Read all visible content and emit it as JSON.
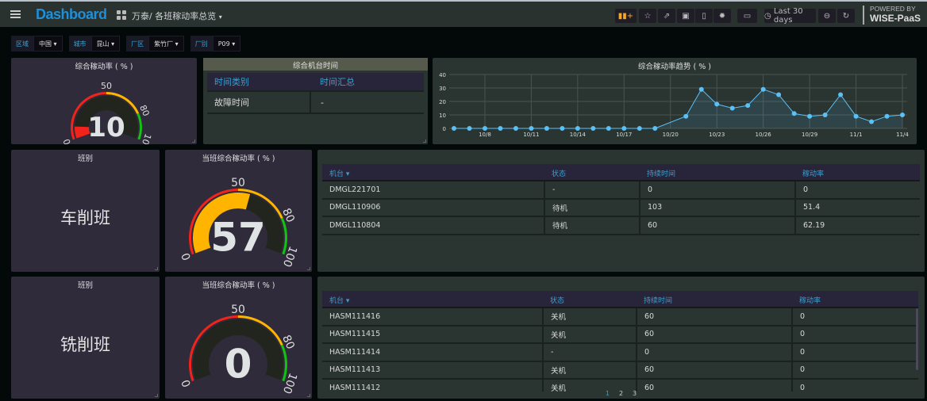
{
  "header": {
    "brand": "Dashboard",
    "breadcrumb": "万泰/ 各班稼动率总览",
    "time_range": "Last 30 days",
    "powered_by": "POWERED BY",
    "platform": "WISE-PaaS",
    "toolbar_icons": [
      "add-panel-icon",
      "star-icon",
      "share-icon",
      "save-icon",
      "mobile-icon",
      "gear-icon",
      "monitor-icon",
      "clock-icon",
      "zoom-out-icon",
      "refresh-icon"
    ]
  },
  "filters": [
    {
      "label": "区域",
      "value": "中国"
    },
    {
      "label": "城市",
      "value": "昆山"
    },
    {
      "label": "厂区",
      "value": "紫竹厂"
    },
    {
      "label": "厂别",
      "value": "P09"
    }
  ],
  "overall_gauge": {
    "title": "综合稼动率 ( % )",
    "value": 10,
    "min": 0,
    "max": 100,
    "thresholds": [
      50,
      80
    ],
    "colors": [
      "#f2231b",
      "#ffb400",
      "#12c312"
    ]
  },
  "machine_time": {
    "title": "综合机台时间",
    "headers": [
      "时间类别",
      "时间汇总"
    ],
    "rows": [
      [
        "故障时间",
        "-"
      ]
    ]
  },
  "trend": {
    "title": "综合稼动率趋势 ( % )"
  },
  "shifts": [
    {
      "label_title": "班别",
      "name": "车削班",
      "gauge_title": "当班综合稼动率 ( % )",
      "value": 57,
      "table": {
        "headers": [
          "机台",
          "状态",
          "持续时间",
          "稼动率"
        ],
        "rows": [
          [
            "DMGL221701",
            "-",
            "0",
            "0"
          ],
          [
            "DMGL110906",
            "待机",
            "103",
            "51.4"
          ],
          [
            "DMGL110804",
            "待机",
            "60",
            "62.19"
          ]
        ]
      }
    },
    {
      "label_title": "班别",
      "name": "铣削班",
      "gauge_title": "当班综合稼动率 ( % )",
      "value": 0,
      "table": {
        "headers": [
          "机台",
          "状态",
          "持续时间",
          "稼动率"
        ],
        "rows": [
          [
            "HASM111416",
            "关机",
            "60",
            "0"
          ],
          [
            "HASM111415",
            "关机",
            "60",
            "0"
          ],
          [
            "HASM111414",
            "-",
            "0",
            "0"
          ],
          [
            "HASM111413",
            "关机",
            "60",
            "0"
          ],
          [
            "HASM111412",
            "关机",
            "60",
            "0"
          ]
        ]
      },
      "pages": [
        "1",
        "2",
        "3"
      ],
      "current_page": "1"
    }
  ],
  "gauge_ticks": [
    "0",
    "50",
    "80",
    "100"
  ],
  "chart_data": {
    "type": "line",
    "title": "综合稼动率趋势 ( % )",
    "x": [
      "10/6",
      "10/7",
      "10/8",
      "10/9",
      "10/10",
      "10/11",
      "10/12",
      "10/13",
      "10/14",
      "10/15",
      "10/16",
      "10/17",
      "10/18",
      "10/19",
      "10/21",
      "10/22",
      "10/23",
      "10/24",
      "10/25",
      "10/26",
      "10/27",
      "10/28",
      "10/29",
      "10/30",
      "10/31",
      "11/1",
      "11/2",
      "11/3",
      "11/4"
    ],
    "values": [
      0,
      0,
      0,
      0,
      0,
      0,
      0,
      0,
      0,
      0,
      0,
      0,
      0,
      0,
      9,
      29,
      18,
      15,
      17,
      29,
      25,
      11,
      9,
      10,
      25,
      9,
      5,
      9,
      10
    ],
    "x_ticks": [
      "10/8",
      "10/11",
      "10/14",
      "10/17",
      "10/20",
      "10/23",
      "10/26",
      "10/29",
      "11/1",
      "11/4"
    ],
    "y_ticks": [
      0,
      10,
      20,
      30,
      40
    ],
    "ylim": [
      0,
      40
    ],
    "grid": true,
    "line_color": "#5bc0f5"
  }
}
